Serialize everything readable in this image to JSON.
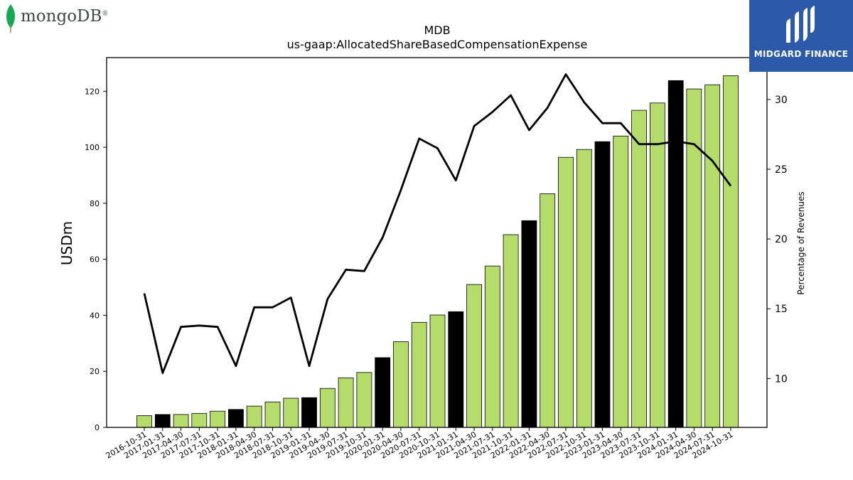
{
  "logos": {
    "left_text": "mongoDB",
    "left_registered": "®",
    "right_text": "MIDGARD FINANCE",
    "brand_green": "#13aa52",
    "brand_blue": "#2d5aa8"
  },
  "chart_data": {
    "type": "bar",
    "title": "MDB",
    "subtitle": "us-gaap:AllocatedShareBasedCompensationExpense",
    "ylabel": "USDm",
    "ylabel_right": "Percentage of Revenues",
    "xlabel": "",
    "ylim": [
      0,
      132
    ],
    "ylim_right": [
      6.5,
      33
    ],
    "yticks": [
      0,
      20,
      40,
      60,
      80,
      100,
      120
    ],
    "yticks_right": [
      10,
      15,
      20,
      25,
      30
    ],
    "grid": false,
    "colors": {
      "quarter_bar": "#b3dc6b",
      "fiscal_year_end_bar": "#000000",
      "line": "#000000"
    },
    "categories": [
      "2016-10-31",
      "2017-01-31",
      "2017-04-30",
      "2017-07-31",
      "2017-10-31",
      "2018-01-31",
      "2018-04-30",
      "2018-07-31",
      "2018-10-31",
      "2019-01-31",
      "2019-04-30",
      "2019-07-31",
      "2019-10-31",
      "2020-01-31",
      "2020-04-30",
      "2020-07-31",
      "2020-10-31",
      "2021-01-31",
      "2021-04-30",
      "2021-07-31",
      "2021-10-31",
      "2022-01-31",
      "2022-04-30",
      "2022-07-31",
      "2022-10-31",
      "2023-01-31",
      "2023-04-30",
      "2023-07-31",
      "2023-10-31",
      "2024-01-31",
      "2024-04-30",
      "2024-07-31",
      "2024-10-31"
    ],
    "series": [
      {
        "type": "bar",
        "axis": "left",
        "values": [
          4.2,
          4.6,
          4.6,
          5.0,
          5.8,
          6.4,
          7.6,
          9.1,
          10.4,
          10.6,
          13.9,
          17.7,
          19.6,
          24.9,
          30.6,
          37.5,
          40.1,
          41.3,
          51.0,
          57.6,
          68.8,
          73.8,
          83.4,
          96.4,
          99.2,
          102.0,
          104.0,
          113.2,
          115.8,
          123.8,
          120.8,
          122.3,
          125.5
        ],
        "highlight": [
          false,
          true,
          false,
          false,
          false,
          true,
          false,
          false,
          false,
          true,
          false,
          false,
          false,
          true,
          false,
          false,
          false,
          true,
          false,
          false,
          false,
          true,
          false,
          false,
          false,
          true,
          false,
          false,
          false,
          true,
          false,
          false,
          false
        ]
      },
      {
        "type": "line",
        "axis": "right",
        "values": [
          16.1,
          10.4,
          13.7,
          13.8,
          13.7,
          10.9,
          15.1,
          15.1,
          15.8,
          10.9,
          15.7,
          17.8,
          17.7,
          20.1,
          23.5,
          27.2,
          26.5,
          24.2,
          28.1,
          29.1,
          30.3,
          27.8,
          29.4,
          31.8,
          29.8,
          28.3,
          28.3,
          26.8,
          26.8,
          27.0,
          26.8,
          25.6,
          23.8
        ]
      }
    ]
  }
}
